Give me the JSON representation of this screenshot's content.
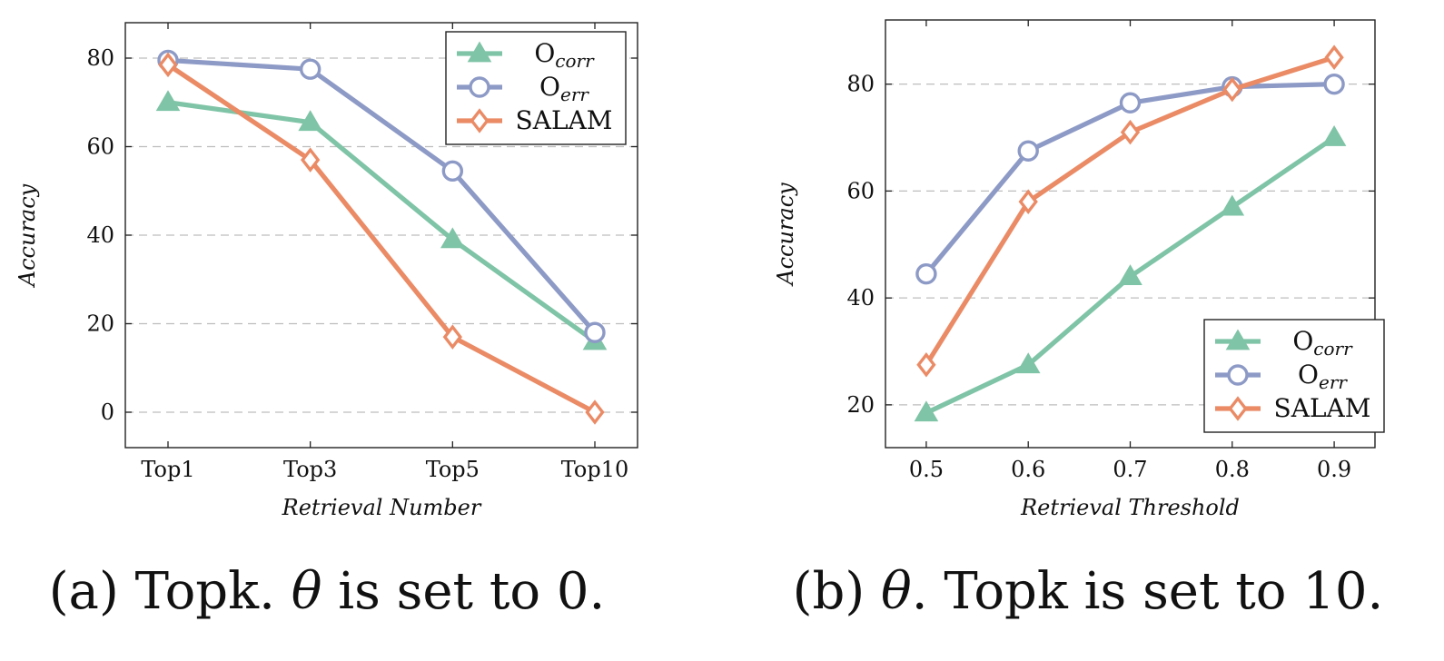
{
  "chart_data": [
    {
      "type": "line",
      "caption": "(a) Topk. θ is set to 0.",
      "caption_parts": {
        "prefix": "(a) Topk. ",
        "symbol": "θ",
        "suffix": " is set to 0."
      },
      "xlabel": "Retrieval Number",
      "ylabel": "Accuracy",
      "categories": [
        "Top1",
        "Top3",
        "Top5",
        "Top10"
      ],
      "ylim": [
        -8,
        88
      ],
      "yticks": [
        0,
        20,
        40,
        60,
        80
      ],
      "grid": "horizontal dashed",
      "legend_position": "top-right",
      "series": [
        {
          "name": "O",
          "name_subscript": "corr",
          "color": "#7fc4a6",
          "marker": "triangle",
          "values": [
            70,
            65.5,
            39,
            16
          ]
        },
        {
          "name": "O",
          "name_subscript": "err",
          "color": "#8d9ac6",
          "marker": "circle",
          "values": [
            79.5,
            77.5,
            54.5,
            18
          ]
        },
        {
          "name": "SALAM",
          "color": "#ea8b66",
          "marker": "diamond",
          "values": [
            78.5,
            57,
            17,
            0
          ]
        }
      ]
    },
    {
      "type": "line",
      "caption": "(b) θ. Topk is set to 10.",
      "caption_parts": {
        "prefix": "(b) ",
        "symbol": "θ",
        "suffix": ". Topk is set to 10."
      },
      "xlabel": "Retrieval Threshold",
      "ylabel": "Accuracy",
      "x": [
        0.5,
        0.6,
        0.7,
        0.8,
        0.9
      ],
      "xticks": [
        "0.5",
        "0.6",
        "0.7",
        "0.8",
        "0.9"
      ],
      "xlim": [
        0.46,
        0.94
      ],
      "ylim": [
        12,
        92
      ],
      "yticks": [
        20,
        40,
        60,
        80
      ],
      "grid": "horizontal dashed",
      "legend_position": "bottom-right",
      "series": [
        {
          "name": "O",
          "name_subscript": "corr",
          "color": "#7fc4a6",
          "marker": "triangle",
          "values": [
            18.5,
            27.5,
            44,
            57,
            70
          ]
        },
        {
          "name": "O",
          "name_subscript": "err",
          "color": "#8d9ac6",
          "marker": "circle",
          "values": [
            44.5,
            67.5,
            76.5,
            79.5,
            80
          ]
        },
        {
          "name": "SALAM",
          "color": "#ea8b66",
          "marker": "diamond",
          "values": [
            27.5,
            58,
            71,
            79,
            85
          ]
        }
      ]
    }
  ]
}
